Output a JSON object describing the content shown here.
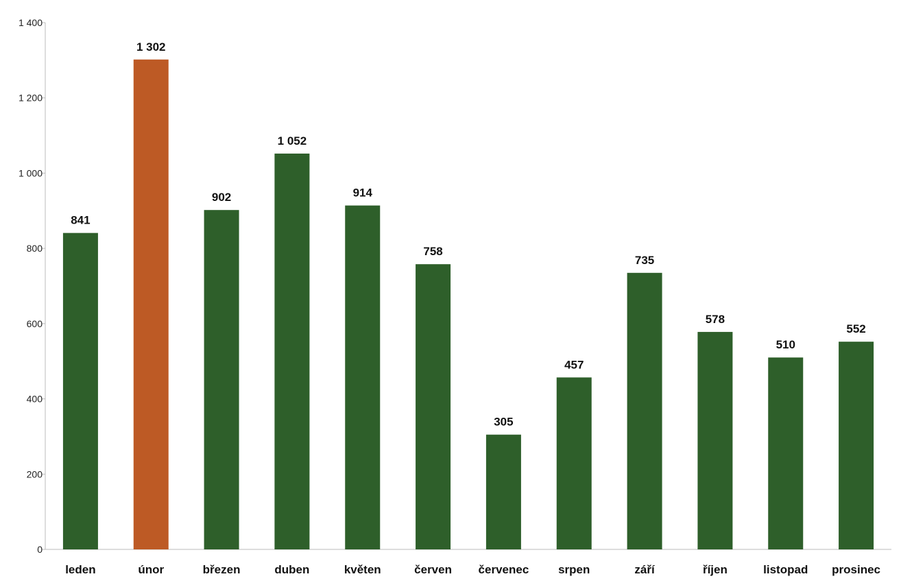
{
  "chart_data": {
    "type": "bar",
    "categories": [
      "leden",
      "únor",
      "březen",
      "duben",
      "květen",
      "červen",
      "červenec",
      "srpen",
      "září",
      "říjen",
      "listopad",
      "prosinec"
    ],
    "values": [
      841,
      1302,
      902,
      1052,
      914,
      758,
      305,
      457,
      735,
      578,
      510,
      552
    ],
    "value_labels": [
      "841",
      "1 302",
      "902",
      "1 052",
      "914",
      "758",
      "305",
      "457",
      "735",
      "578",
      "510",
      "552"
    ],
    "title": "",
    "xlabel": "",
    "ylabel": "",
    "ylim": [
      0,
      1400
    ],
    "yticks": [
      0,
      200,
      400,
      600,
      800,
      1000,
      1200,
      1400
    ],
    "ytick_labels": [
      "0",
      "200",
      "400",
      "600",
      "800",
      "1 000",
      "1 200",
      "1 400"
    ],
    "grid": false,
    "legend": "none",
    "colors": {
      "default_bar": "#2e5f2a",
      "highlight_bar": "#bd5a25",
      "axis": "#bbbbbb"
    },
    "highlight_index": 1
  }
}
